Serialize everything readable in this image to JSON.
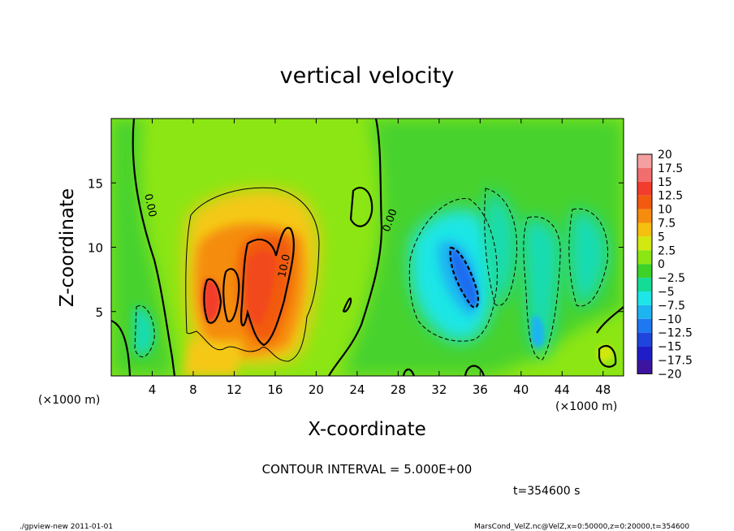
{
  "chart_data": {
    "type": "heatmap",
    "title": "vertical velocity",
    "xlabel": "X-coordinate",
    "ylabel": "Z-coordinate",
    "x_unit_label_left": "(×1000 m)",
    "x_unit_label_right": "(×1000 m)",
    "x_ticks": [
      4,
      8,
      12,
      16,
      20,
      24,
      28,
      32,
      36,
      40,
      44,
      48
    ],
    "y_ticks": [
      5,
      10,
      15
    ],
    "xlim": [
      0,
      50
    ],
    "ylim": [
      0,
      20
    ],
    "colorbar": {
      "labels": [
        "20",
        "17.5",
        "15",
        "12.5",
        "10",
        "7.5",
        "5",
        "2.5",
        "0",
        "−2.5",
        "−5",
        "−7.5",
        "−10",
        "−12.5",
        "−15",
        "−17.5",
        "−20"
      ],
      "colors": [
        "#f4a0a0",
        "#f26e6e",
        "#f23c2c",
        "#f25a10",
        "#f58c10",
        "#f5c010",
        "#d2e810",
        "#8ce614",
        "#3cd228",
        "#14dc96",
        "#1ee6e6",
        "#1eb4f0",
        "#1e78f0",
        "#1e46dc",
        "#1e1ec8",
        "#3c14a0",
        "#6e14aa"
      ]
    },
    "contour_labels": [
      {
        "text": "0.00",
        "x": 3.5,
        "y": 13.2
      },
      {
        "text": "0.00",
        "x": 27.5,
        "y": 12.0
      },
      {
        "text": "10.0",
        "x": 17.2,
        "y": 8.5
      }
    ],
    "contour_interval_text": "CONTOUR INTERVAL = 5.000E+00",
    "time_text": "t=354600 s",
    "grid": false,
    "legend": "right"
  },
  "footer": {
    "left": "./gpview-new   2011-01-01",
    "right": "MarsCond_VelZ.nc@VelZ,x=0:50000,z=0:20000,t=354600"
  }
}
